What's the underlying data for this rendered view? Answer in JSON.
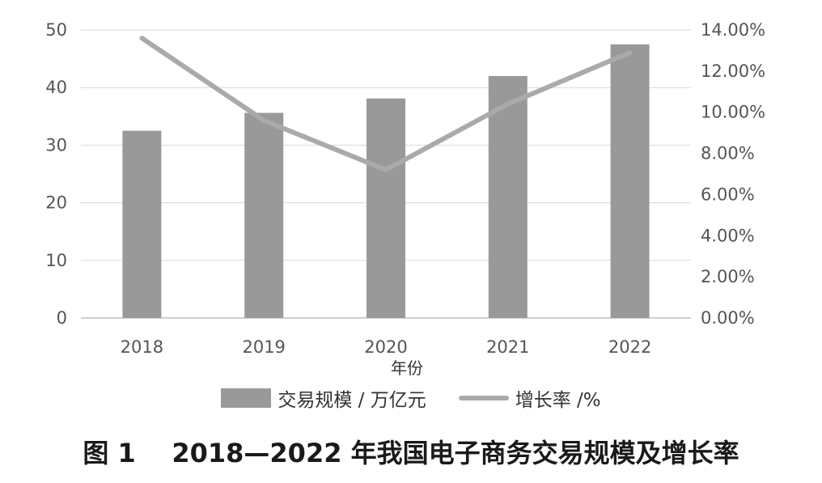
{
  "chart_data": {
    "type": "bar",
    "categories": [
      "2018",
      "2019",
      "2020",
      "2021",
      "2022"
    ],
    "series": [
      {
        "name": "交易规模 / 万亿元",
        "type": "bar",
        "axis": "left",
        "color": "#999999",
        "values": [
          32.5,
          35.6,
          38.1,
          42.0,
          47.5
        ]
      },
      {
        "name": "增长率 /%",
        "type": "line",
        "axis": "right",
        "color": "#aaaaaa",
        "values": [
          13.6,
          9.6,
          7.2,
          10.4,
          12.9
        ]
      }
    ],
    "xlabel": "年份",
    "ylim": [
      0,
      50
    ],
    "y_ticks": [
      0,
      10,
      20,
      30,
      40,
      50
    ],
    "y2lim": [
      0,
      14
    ],
    "y2_ticks": [
      "0.00%",
      "2.00%",
      "4.00%",
      "6.00%",
      "8.00%",
      "10.00%",
      "12.00%",
      "14.00%"
    ],
    "grid": true,
    "legend_position": "bottom"
  },
  "caption": "图 1    2018—2022 年我国电子商务交易规模及增长率"
}
